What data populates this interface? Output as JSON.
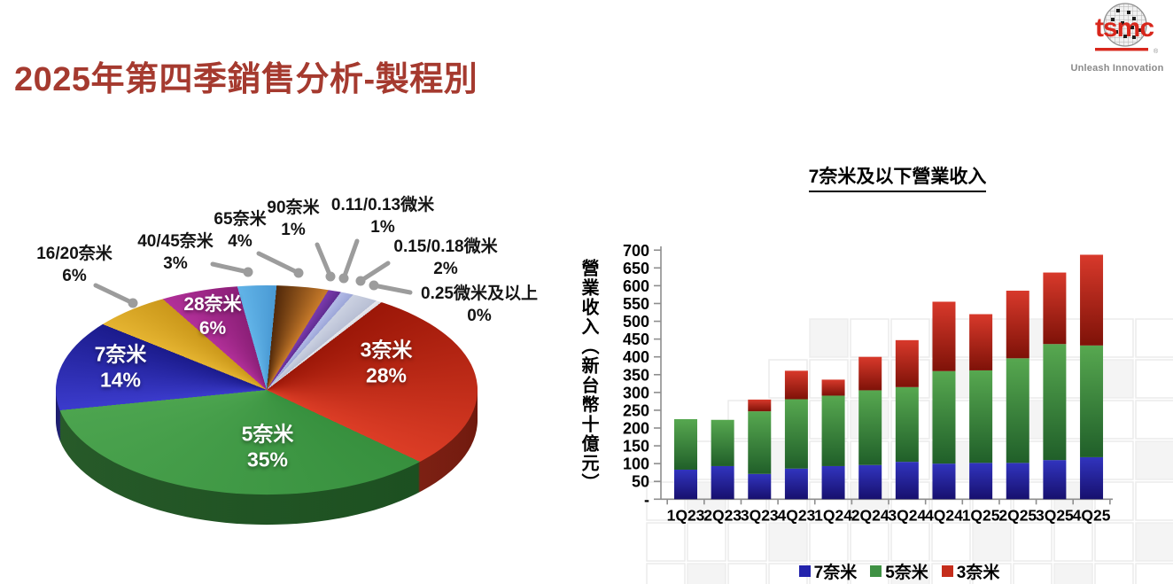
{
  "header": {
    "title": "2025年第四季銷售分析-製程別"
  },
  "logo": {
    "brand": "tsmc",
    "registered": "®",
    "tagline": "Unleash Innovation",
    "brand_color": "#D8271C",
    "tagline_color": "#8A8A8A"
  },
  "chart_data": [
    {
      "type": "pie",
      "style": "3d",
      "start_angle_deg_from_top": 33,
      "slices": [
        {
          "label": "3奈米",
          "pct": 28,
          "pct_label": "28%",
          "color": "#9C1708",
          "color2": "#DC3D26"
        },
        {
          "label": "5奈米",
          "pct": 35,
          "pct_label": "35%",
          "color": "#37903E",
          "color2": "#4CA44F"
        },
        {
          "label": "7奈米",
          "pct": 14,
          "pct_label": "14%",
          "color": "#3B3BCC",
          "color2": "#1B1B8C"
        },
        {
          "label": "16/20奈米",
          "pct": 6,
          "pct_label": "6%",
          "color": "#E5B431",
          "color2": "#CB981A"
        },
        {
          "label": "28奈米",
          "pct": 6,
          "pct_label": "6%",
          "color": "#B23099",
          "color2": "#8C1F78"
        },
        {
          "label": "40/45奈米",
          "pct": 3,
          "pct_label": "3%",
          "color": "#62B4E8",
          "color2": "#4A9AD4"
        },
        {
          "label": "65奈米",
          "pct": 4,
          "pct_label": "4%",
          "color": "#52290A",
          "color2": "#C87B2A"
        },
        {
          "label": "90奈米",
          "pct": 1,
          "pct_label": "1%",
          "color": "#7A3AAC",
          "color2": "#602C92"
        },
        {
          "label": "0.11/0.13微米",
          "pct": 1,
          "pct_label": "1%",
          "color": "#B2BAE6",
          "color2": "#9CA6D8"
        },
        {
          "label": "0.15/0.18微米",
          "pct": 2,
          "pct_label": "2%",
          "color": "#CBD1E1",
          "color2": "#B8BFD4"
        },
        {
          "label": "0.25微米及以上",
          "pct": 0,
          "pct_label": "0%",
          "color": "#E8E9EE",
          "color2": "#DCDDE4"
        }
      ]
    },
    {
      "type": "bar",
      "subtype": "stacked",
      "title": "7奈米及以下營業收入",
      "ylabel": "營業收入（新台幣十億元）",
      "ylim": [
        0,
        700
      ],
      "ytick_step": 50,
      "zero_tick_label": "-",
      "grid": false,
      "legend_position": "bottom",
      "categories": [
        "1Q23",
        "2Q23",
        "3Q23",
        "4Q23",
        "1Q24",
        "2Q24",
        "3Q24",
        "4Q24",
        "1Q25",
        "2Q25",
        "3Q25",
        "4Q25"
      ],
      "series": [
        {
          "name": "7奈米",
          "legend_color": "#2323AC",
          "color": "#3134BE",
          "color2": "#17106E",
          "values": [
            83,
            93,
            71,
            86,
            93,
            96,
            105,
            100,
            102,
            102,
            110,
            118
          ]
        },
        {
          "name": "5奈米",
          "legend_color": "#3F9144",
          "color": "#57A850",
          "color2": "#205F29",
          "values": [
            142,
            130,
            176,
            195,
            198,
            210,
            210,
            260,
            260,
            294,
            326,
            314
          ]
        },
        {
          "name": "3奈米",
          "legend_color": "#C52D1B",
          "color": "#D8392B",
          "color2": "#7E1208",
          "values": [
            0,
            0,
            33,
            80,
            45,
            94,
            132,
            195,
            158,
            190,
            201,
            255
          ]
        }
      ]
    }
  ]
}
